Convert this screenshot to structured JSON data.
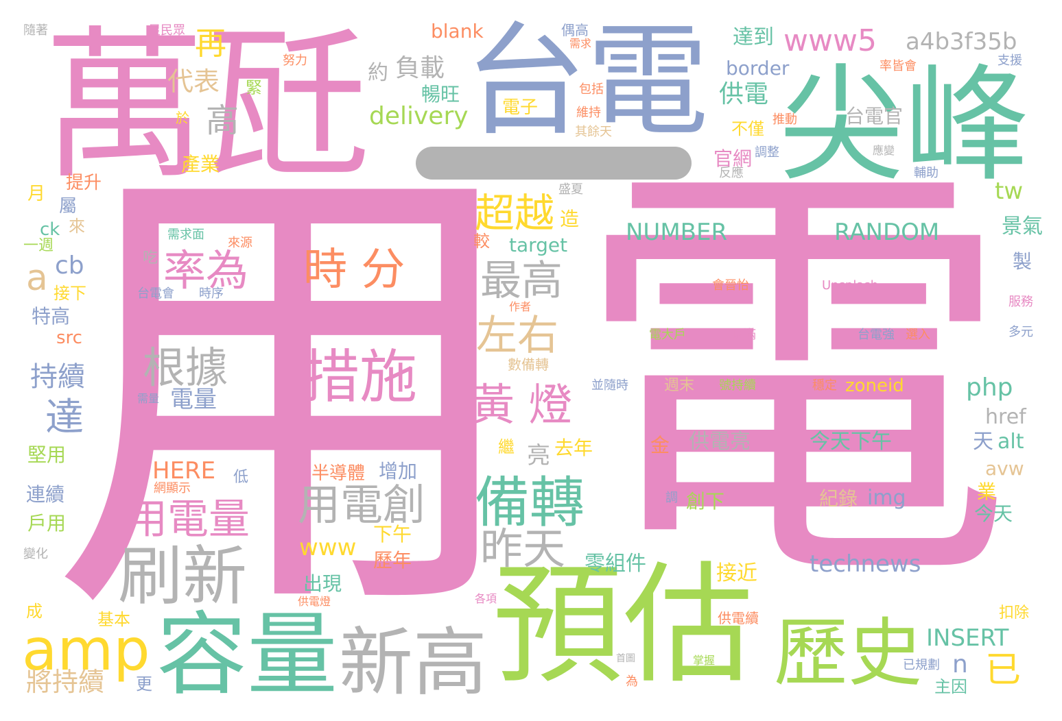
{
  "palette": {
    "pink": "#e78ac3",
    "green": "#66c2a5",
    "orange": "#fc8d62",
    "blue": "#8da0cb",
    "lime": "#a6d854",
    "yellow": "#ffd92f",
    "tan": "#e5c494",
    "gray": "#b3b3b3"
  },
  "words": [
    {
      "text": "用",
      "color": "pink"
    },
    {
      "text": "電",
      "color": "pink"
    },
    {
      "text": "萬瓩",
      "color": "pink"
    },
    {
      "text": "台電",
      "color": "blue"
    },
    {
      "text": "尖峰",
      "color": "green"
    },
    {
      "text": "預估",
      "color": "lime"
    },
    {
      "text": "容量",
      "color": "green"
    },
    {
      "text": "新高",
      "color": "gray"
    },
    {
      "text": "歷史",
      "color": "lime"
    },
    {
      "text": "刷新",
      "color": "gray"
    },
    {
      "text": "amp",
      "color": "yellow"
    },
    {
      "text": "備轉",
      "color": "green"
    },
    {
      "text": "措施",
      "color": "pink"
    },
    {
      "text": "時 分",
      "color": "orange"
    },
    {
      "text": "率為",
      "color": "pink"
    },
    {
      "text": "根據",
      "color": "gray"
    },
    {
      "text": "用電量",
      "color": "pink"
    },
    {
      "text": "用電創",
      "color": "gray"
    },
    {
      "text": "黃 燈",
      "color": "pink"
    },
    {
      "text": "昨天",
      "color": "gray"
    },
    {
      "text": "最高",
      "color": "gray"
    },
    {
      "text": "左右",
      "color": "tan"
    },
    {
      "text": "超越",
      "color": "yellow"
    },
    {
      "text": "www5",
      "color": "pink"
    },
    {
      "text": "a4b3f35b",
      "color": "gray"
    },
    {
      "text": "NUMBER",
      "color": "green"
    },
    {
      "text": "RANDOM",
      "color": "green"
    },
    {
      "text": "delivery",
      "color": "lime"
    },
    {
      "text": "technews",
      "color": "blue"
    },
    {
      "text": "INSERT",
      "color": "green"
    },
    {
      "text": "php",
      "color": "green"
    },
    {
      "text": "zoneid",
      "color": "yellow"
    },
    {
      "text": "高",
      "color": "gray"
    },
    {
      "text": "代表",
      "color": "tan"
    },
    {
      "text": "再",
      "color": "yellow"
    },
    {
      "text": "負載",
      "color": "gray"
    },
    {
      "text": "blank",
      "color": "orange"
    },
    {
      "text": "達到",
      "color": "green"
    },
    {
      "text": "border",
      "color": "blue"
    },
    {
      "text": "供電",
      "color": "green"
    },
    {
      "text": "台電官",
      "color": "gray"
    },
    {
      "text": "持續",
      "color": "blue"
    },
    {
      "text": "達",
      "color": "blue"
    },
    {
      "text": "a",
      "color": "tan"
    },
    {
      "text": "cb",
      "color": "blue"
    },
    {
      "text": "將持續",
      "color": "tan"
    },
    {
      "text": "www",
      "color": "yellow"
    },
    {
      "text": "HERE",
      "color": "orange"
    },
    {
      "text": "電量",
      "color": "blue"
    },
    {
      "text": "亮",
      "color": "gray"
    },
    {
      "text": "去年",
      "color": "yellow"
    },
    {
      "text": "供電亮",
      "color": "gray"
    },
    {
      "text": "今天下午",
      "color": "green"
    },
    {
      "text": "創下",
      "color": "lime"
    },
    {
      "text": "紀錄",
      "color": "tan"
    },
    {
      "text": "img",
      "color": "blue"
    },
    {
      "text": "已",
      "color": "yellow"
    },
    {
      "text": "n",
      "color": "blue"
    },
    {
      "text": "接近",
      "color": "yellow"
    },
    {
      "text": "零組件",
      "color": "green"
    },
    {
      "text": "target",
      "color": "green"
    },
    {
      "text": "tw",
      "color": "lime"
    },
    {
      "text": "景氣",
      "color": "green"
    },
    {
      "text": "href",
      "color": "gray"
    },
    {
      "text": "天",
      "color": "blue"
    },
    {
      "text": "alt",
      "color": "green"
    },
    {
      "text": "avw",
      "color": "tan"
    },
    {
      "text": "業",
      "color": "yellow"
    },
    {
      "text": "今天",
      "color": "green"
    },
    {
      "text": "半導體",
      "color": "orange"
    },
    {
      "text": "增加",
      "color": "blue"
    },
    {
      "text": "下午",
      "color": "yellow"
    },
    {
      "text": "歷年",
      "color": "orange"
    },
    {
      "text": "出現",
      "color": "green"
    },
    {
      "text": "特高",
      "color": "blue"
    },
    {
      "text": "src",
      "color": "orange"
    },
    {
      "text": "堅用",
      "color": "lime"
    },
    {
      "text": "連續",
      "color": "blue"
    },
    {
      "text": "戶用",
      "color": "lime"
    },
    {
      "text": "基本",
      "color": "yellow"
    },
    {
      "text": "更",
      "color": "blue"
    },
    {
      "text": "成",
      "color": "yellow"
    },
    {
      "text": "電子",
      "color": "yellow"
    },
    {
      "text": "暢旺",
      "color": "green"
    },
    {
      "text": "約",
      "color": "gray"
    },
    {
      "text": "不僅",
      "color": "yellow"
    },
    {
      "text": "官網",
      "color": "pink"
    },
    {
      "text": "產業",
      "color": "yellow"
    },
    {
      "text": "提升",
      "color": "orange"
    },
    {
      "text": "月",
      "color": "yellow"
    },
    {
      "text": "屬",
      "color": "blue"
    },
    {
      "text": "ck",
      "color": "green"
    },
    {
      "text": "來",
      "color": "tan"
    },
    {
      "text": "一週",
      "color": "lime"
    },
    {
      "text": "接下",
      "color": "yellow"
    },
    {
      "text": "吃",
      "color": "gray"
    },
    {
      "text": "造",
      "color": "yellow"
    },
    {
      "text": "較",
      "color": "orange"
    },
    {
      "text": "繼",
      "color": "yellow"
    },
    {
      "text": "金",
      "color": "orange"
    },
    {
      "text": "低",
      "color": "blue"
    },
    {
      "text": "製",
      "color": "blue"
    },
    {
      "text": "緊",
      "color": "lime"
    },
    {
      "text": "於",
      "color": "yellow"
    },
    {
      "text": "隨著",
      "color": "gray"
    },
    {
      "text": "足民眾",
      "color": "pink"
    },
    {
      "text": "努力",
      "color": "orange"
    },
    {
      "text": "偶高",
      "color": "blue"
    },
    {
      "text": "需求",
      "color": "orange"
    },
    {
      "text": "率皆會",
      "color": "orange"
    },
    {
      "text": "支援",
      "color": "blue"
    },
    {
      "text": "包括",
      "color": "orange"
    },
    {
      "text": "維持",
      "color": "orange"
    },
    {
      "text": "推動",
      "color": "orange"
    },
    {
      "text": "其餘天",
      "color": "tan"
    },
    {
      "text": "調整",
      "color": "blue"
    },
    {
      "text": "反應",
      "color": "gray"
    },
    {
      "text": "應變",
      "color": "gray"
    },
    {
      "text": "輔助",
      "color": "blue"
    },
    {
      "text": "盛夏",
      "color": "gray"
    },
    {
      "text": "需求面",
      "color": "green"
    },
    {
      "text": "來源",
      "color": "orange"
    },
    {
      "text": "台電會",
      "color": "blue"
    },
    {
      "text": "時序",
      "color": "blue"
    },
    {
      "text": "作者",
      "color": "orange"
    },
    {
      "text": "數備轉",
      "color": "tan"
    },
    {
      "text": "電大戶",
      "color": "lime"
    },
    {
      "text": "以滿",
      "color": "pink"
    },
    {
      "text": "會晉怡",
      "color": "orange"
    },
    {
      "text": "Unsplash",
      "color": "pink"
    },
    {
      "text": "台電強",
      "color": "blue"
    },
    {
      "text": "選入",
      "color": "orange"
    },
    {
      "text": "服務",
      "color": "pink"
    },
    {
      "text": "多元",
      "color": "blue"
    },
    {
      "text": "並隨時",
      "color": "blue"
    },
    {
      "text": "需量",
      "color": "blue"
    },
    {
      "text": "週末",
      "color": "tan"
    },
    {
      "text": "號持續",
      "color": "lime"
    },
    {
      "text": "穩定",
      "color": "orange"
    },
    {
      "text": "調",
      "color": "blue"
    },
    {
      "text": "網顯示",
      "color": "orange"
    },
    {
      "text": "變化",
      "color": "gray"
    },
    {
      "text": "供電燈",
      "color": "orange"
    },
    {
      "text": "各項",
      "color": "pink"
    },
    {
      "text": "供電續",
      "color": "orange"
    },
    {
      "text": "扣除",
      "color": "yellow"
    },
    {
      "text": "首圖",
      "color": "gray"
    },
    {
      "text": "為",
      "color": "orange"
    },
    {
      "text": "掌握",
      "color": "lime"
    },
    {
      "text": "已規劃",
      "color": "blue"
    },
    {
      "text": "主因",
      "color": "green"
    }
  ]
}
